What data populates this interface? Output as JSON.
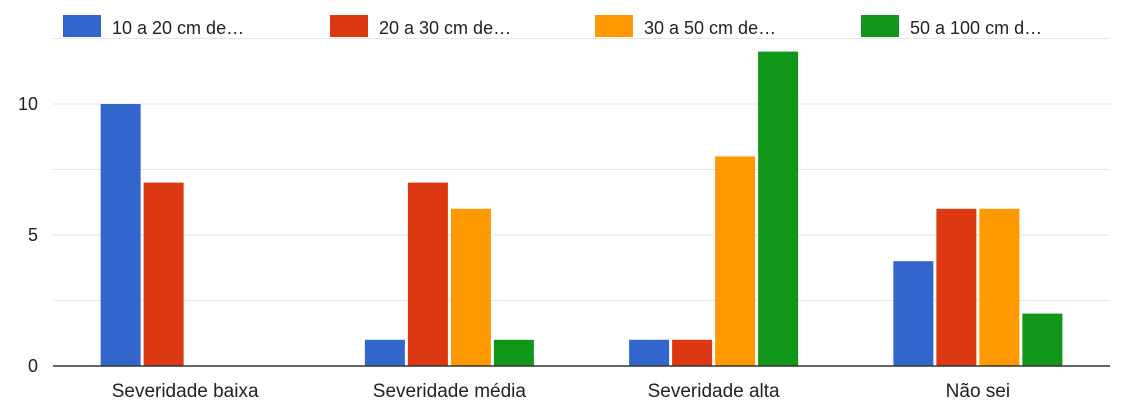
{
  "chart_data": {
    "type": "bar",
    "categories": [
      "Severidade baixa",
      "Severidade média",
      "Severidade alta",
      "Não sei"
    ],
    "series": [
      {
        "name": "10 a 20 cm de…",
        "color": "#3366cc",
        "values": [
          10,
          1,
          1,
          4
        ]
      },
      {
        "name": "20 a 30 cm de…",
        "color": "#dc3912",
        "values": [
          7,
          7,
          1,
          6
        ]
      },
      {
        "name": "30 a 50 cm de…",
        "color": "#ff9900",
        "values": [
          0,
          6,
          8,
          6
        ]
      },
      {
        "name": "50 a 100 cm d…",
        "color": "#109618",
        "values": [
          0,
          1,
          12,
          2
        ]
      }
    ],
    "yticks": [
      0,
      5,
      10
    ],
    "ylim": [
      0,
      12.5
    ],
    "grid": true,
    "legend": "top"
  }
}
